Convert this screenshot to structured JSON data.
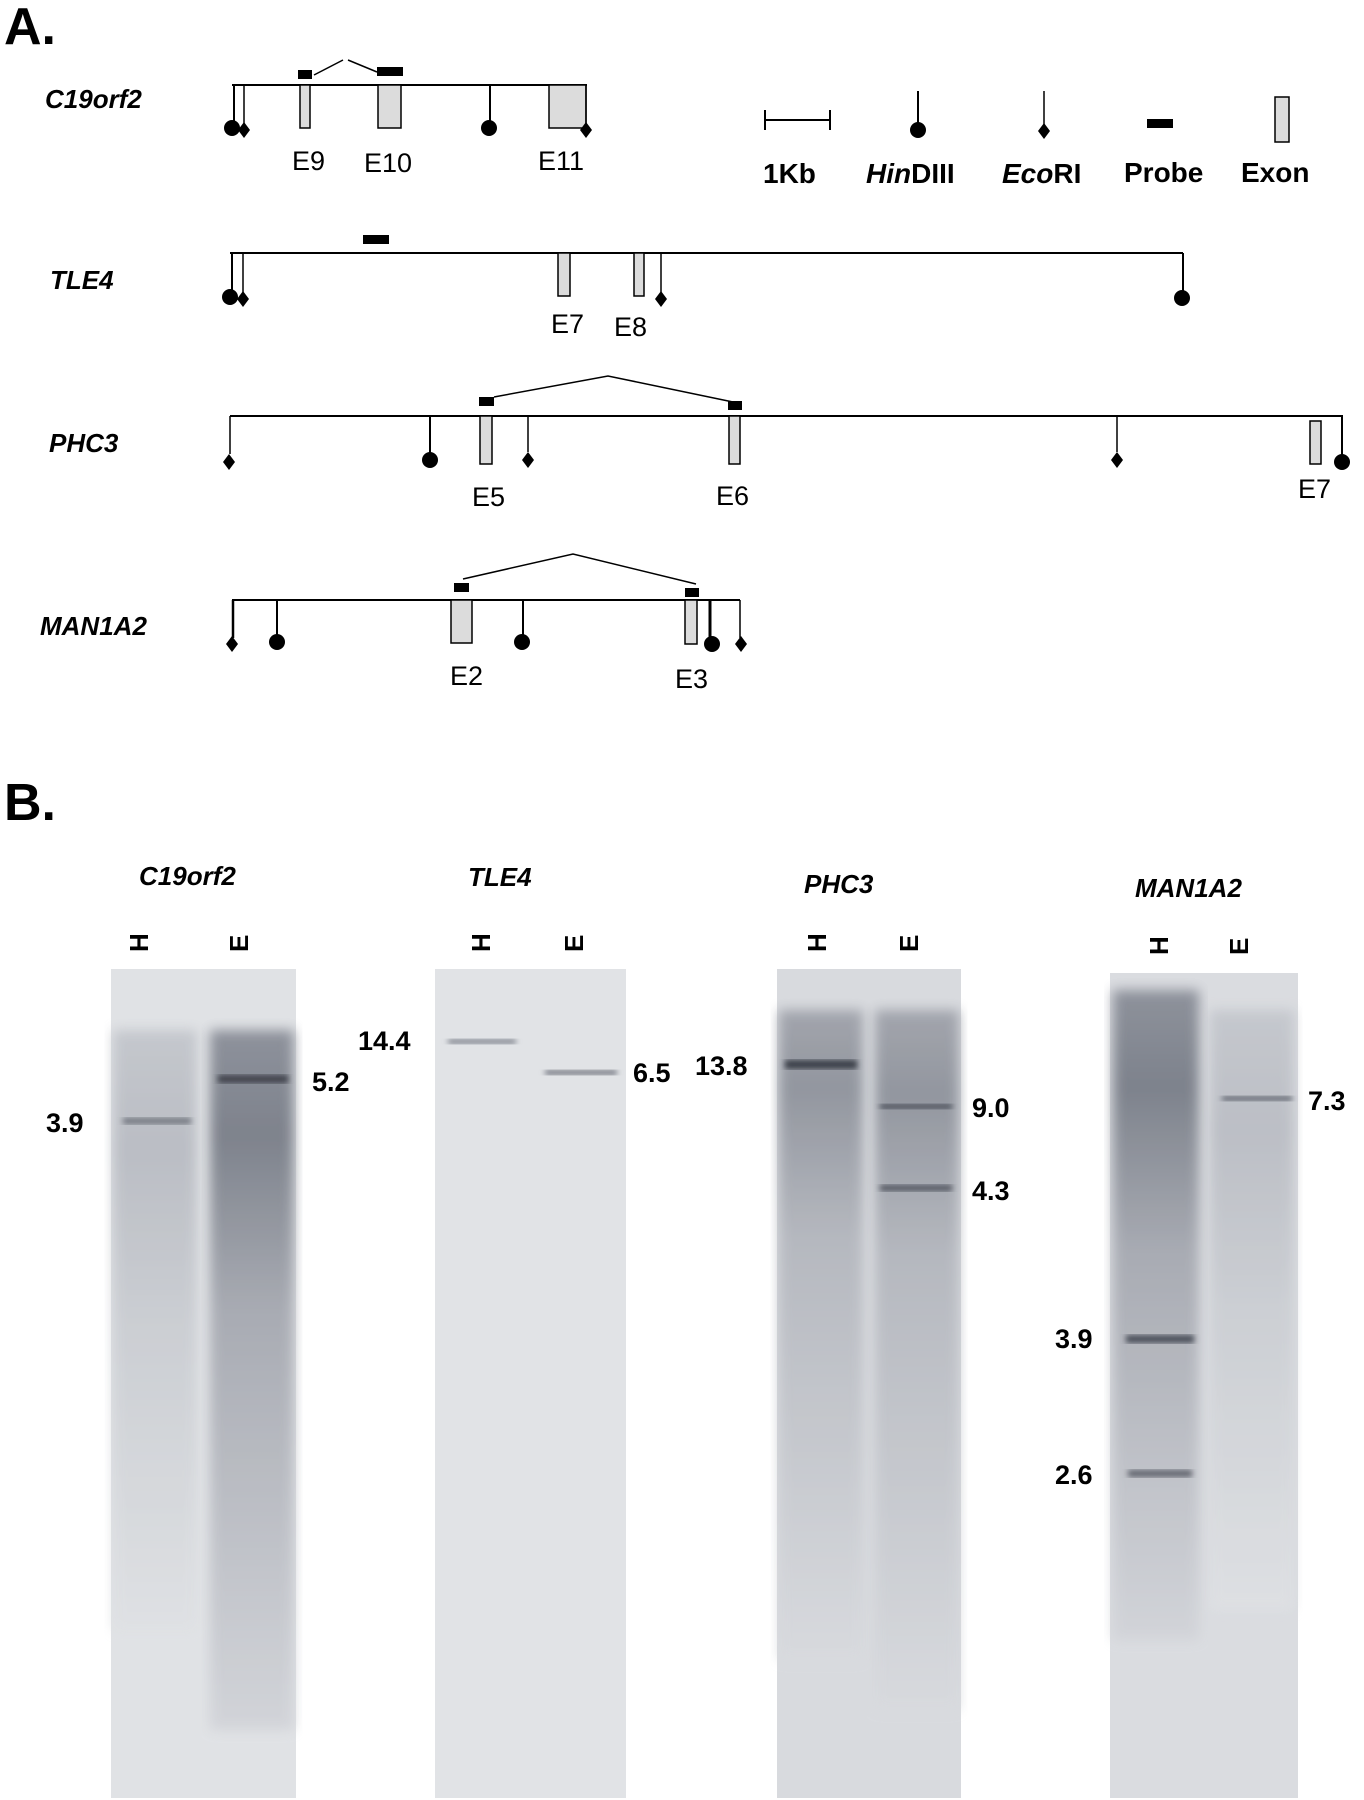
{
  "panel_a": {
    "label": "A.",
    "legend": {
      "scale": "1Kb",
      "hindiii": {
        "italic": "Hin",
        "plain": "DIII"
      },
      "ecori": {
        "italic": "Eco",
        "plain": "RI"
      },
      "probe": "Probe",
      "exon": "Exon"
    },
    "genes": [
      {
        "name": "C19orf2",
        "exons": [
          "E9",
          "E10",
          "E11"
        ]
      },
      {
        "name": "TLE4",
        "exons": [
          "E7",
          "E8"
        ]
      },
      {
        "name": "PHC3",
        "exons": [
          "E5",
          "E6",
          "E7"
        ]
      },
      {
        "name": "MAN1A2",
        "exons": [
          "E2",
          "E3"
        ]
      }
    ]
  },
  "panel_b": {
    "label": "B.",
    "blots": [
      {
        "gene": "C19orf2",
        "lanes": [
          "H",
          "E"
        ],
        "left_sizes": [
          "3.9"
        ],
        "right_sizes": [
          "5.2"
        ]
      },
      {
        "gene": "TLE4",
        "lanes": [
          "H",
          "E"
        ],
        "left_sizes": [
          "14.4"
        ],
        "right_sizes": [
          "6.5"
        ]
      },
      {
        "gene": "PHC3",
        "lanes": [
          "H",
          "E"
        ],
        "left_sizes": [
          "13.8"
        ],
        "right_sizes": [
          "9.0",
          "4.3"
        ]
      },
      {
        "gene": "MAN1A2",
        "lanes": [
          "H",
          "E"
        ],
        "left_sizes": [
          "3.9",
          "2.6"
        ],
        "right_sizes": [
          "7.3"
        ]
      }
    ]
  }
}
